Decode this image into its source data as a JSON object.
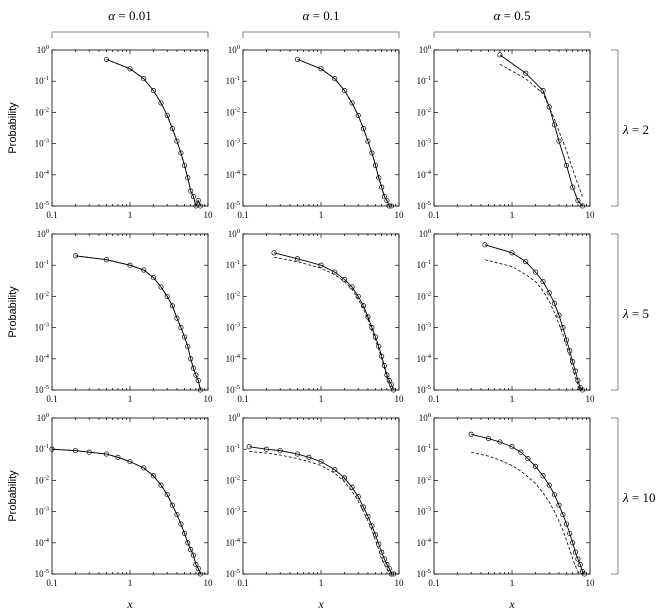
{
  "column_headers": [
    {
      "symbol": "α",
      "text": " = 0.01"
    },
    {
      "symbol": "α",
      "text": " = 0.1"
    },
    {
      "symbol": "α",
      "text": " = 0.5"
    }
  ],
  "row_headers": [
    {
      "symbol": "λ",
      "text": " = 2"
    },
    {
      "symbol": "λ",
      "text": " = 5"
    },
    {
      "symbol": "λ",
      "text": " = 10"
    }
  ],
  "ylabel": "Probability",
  "xlabel": "x",
  "x_tick_labels": [
    "0.1",
    "1",
    "10"
  ],
  "y_tick_base": "10",
  "y_tick_exponents": [
    "0",
    "-1",
    "-2",
    "-3",
    "-4",
    "-5"
  ],
  "chart_data": {
    "type": "line",
    "layout": "3x3 grid",
    "xscale": "log",
    "yscale": "log",
    "xlim": [
      0.1,
      10
    ],
    "ylim": [
      1e-05,
      1
    ],
    "grid": false,
    "series_styles": {
      "simulation": "solid line with open circles",
      "theory": "dashed line"
    },
    "panels": [
      {
        "alpha": 0.01,
        "lambda": 2,
        "sim": {
          "x": [
            0.5,
            1,
            1.5,
            2,
            2.5,
            3,
            3.5,
            4,
            4.5,
            5,
            5.5,
            6,
            6.5,
            7,
            7.5,
            8
          ],
          "y": [
            0.5,
            0.25,
            0.12,
            0.05,
            0.02,
            0.008,
            0.003,
            0.0012,
            0.0005,
            0.0002,
            8e-05,
            3e-05,
            2e-05,
            1e-05,
            1.5e-05,
            1e-05
          ]
        },
        "theory": {
          "x": [
            0.5,
            1,
            1.5,
            2,
            2.5,
            3,
            3.5,
            4,
            4.5,
            5,
            5.5,
            6,
            6.5,
            7,
            7.5,
            8
          ],
          "y": [
            0.5,
            0.25,
            0.12,
            0.05,
            0.02,
            0.008,
            0.003,
            0.0012,
            0.0005,
            0.0002,
            8e-05,
            3e-05,
            2e-05,
            1e-05,
            1.5e-05,
            1e-05
          ]
        }
      },
      {
        "alpha": 0.1,
        "lambda": 2,
        "sim": {
          "x": [
            0.5,
            1,
            1.5,
            2,
            2.5,
            3,
            3.5,
            4,
            4.5,
            5,
            5.5,
            6,
            6.5,
            7,
            7.5,
            8
          ],
          "y": [
            0.5,
            0.25,
            0.12,
            0.05,
            0.02,
            0.008,
            0.003,
            0.0012,
            0.0005,
            0.0002,
            8e-05,
            4e-05,
            2e-05,
            1.5e-05,
            1e-05,
            1e-05
          ]
        },
        "theory": {
          "x": [
            0.5,
            1,
            1.5,
            2,
            2.5,
            3,
            3.5,
            4,
            4.5,
            5,
            5.5,
            6,
            6.5,
            7,
            7.5,
            8
          ],
          "y": [
            0.5,
            0.25,
            0.12,
            0.05,
            0.02,
            0.008,
            0.003,
            0.0012,
            0.0005,
            0.0002,
            8e-05,
            4e-05,
            2e-05,
            1.5e-05,
            1e-05,
            1e-05
          ]
        }
      },
      {
        "alpha": 0.5,
        "lambda": 2,
        "sim": {
          "x": [
            0.7,
            1.5,
            2.5,
            3,
            3.5,
            4,
            5,
            6,
            7,
            8
          ],
          "y": [
            0.7,
            0.18,
            0.05,
            0.015,
            0.004,
            0.0012,
            0.0002,
            4e-05,
            1.5e-05,
            1e-05
          ]
        },
        "theory": {
          "x": [
            0.7,
            1.5,
            2.5,
            3,
            3.5,
            4,
            5,
            6,
            7,
            8
          ],
          "y": [
            0.35,
            0.12,
            0.04,
            0.015,
            0.006,
            0.0025,
            0.0006,
            0.00015,
            5e-05,
            2e-05
          ]
        }
      },
      {
        "alpha": 0.01,
        "lambda": 5,
        "sim": {
          "x": [
            0.2,
            0.5,
            1,
            1.5,
            2,
            2.5,
            3,
            3.5,
            4,
            4.5,
            5,
            5.5,
            6,
            6.5,
            7,
            7.5,
            8
          ],
          "y": [
            0.2,
            0.15,
            0.1,
            0.07,
            0.04,
            0.02,
            0.01,
            0.005,
            0.002,
            0.001,
            0.0005,
            0.00025,
            0.0001,
            5e-05,
            3e-05,
            2e-05,
            1e-05
          ]
        },
        "theory": {
          "x": [
            0.2,
            0.5,
            1,
            1.5,
            2,
            2.5,
            3,
            3.5,
            4,
            4.5,
            5,
            5.5,
            6,
            6.5,
            7,
            7.5,
            8
          ],
          "y": [
            0.2,
            0.15,
            0.1,
            0.07,
            0.04,
            0.02,
            0.01,
            0.005,
            0.002,
            0.001,
            0.0005,
            0.00025,
            0.0001,
            5e-05,
            3e-05,
            2e-05,
            1e-05
          ]
        }
      },
      {
        "alpha": 0.1,
        "lambda": 5,
        "sim": {
          "x": [
            0.25,
            0.5,
            1,
            1.5,
            2,
            2.5,
            3,
            3.5,
            4,
            4.5,
            5,
            5.5,
            6,
            6.5,
            7,
            7.5,
            8,
            8.5
          ],
          "y": [
            0.25,
            0.16,
            0.1,
            0.06,
            0.035,
            0.02,
            0.01,
            0.005,
            0.0022,
            0.001,
            0.0005,
            0.00025,
            0.00012,
            6e-05,
            3e-05,
            2e-05,
            1.5e-05,
            1e-05
          ]
        },
        "theory": {
          "x": [
            0.25,
            0.5,
            1,
            1.5,
            2,
            2.5,
            3,
            3.5,
            4,
            4.5,
            5,
            5.5,
            6,
            6.5,
            7,
            7.5,
            8,
            8.5
          ],
          "y": [
            0.18,
            0.13,
            0.08,
            0.05,
            0.03,
            0.017,
            0.008,
            0.004,
            0.0018,
            0.0008,
            0.0004,
            0.0002,
            0.0001,
            5e-05,
            2.5e-05,
            1.5e-05,
            1e-05,
            1e-05
          ]
        }
      },
      {
        "alpha": 0.5,
        "lambda": 5,
        "sim": {
          "x": [
            0.45,
            1,
            1.5,
            2,
            2.5,
            3,
            3.5,
            4,
            4.5,
            5,
            5.5,
            6,
            6.5,
            7,
            7.5,
            8
          ],
          "y": [
            0.45,
            0.25,
            0.13,
            0.06,
            0.03,
            0.013,
            0.006,
            0.0025,
            0.001,
            0.0004,
            0.00018,
            8e-05,
            4e-05,
            2e-05,
            1.2e-05,
            1e-05
          ]
        },
        "theory": {
          "x": [
            0.45,
            1,
            1.5,
            2,
            2.5,
            3,
            3.5,
            4,
            4.5,
            5,
            5.5,
            6,
            6.5,
            7,
            7.5,
            8
          ],
          "y": [
            0.15,
            0.09,
            0.05,
            0.03,
            0.015,
            0.007,
            0.003,
            0.0013,
            0.0006,
            0.00026,
            0.00012,
            5e-05,
            2.5e-05,
            1.5e-05,
            1e-05,
            1e-05
          ]
        }
      },
      {
        "alpha": 0.01,
        "lambda": 10,
        "sim": {
          "x": [
            0.1,
            0.2,
            0.3,
            0.5,
            0.7,
            1,
            1.5,
            2,
            2.5,
            3,
            3.5,
            4,
            4.5,
            5,
            5.5,
            6,
            6.5,
            7,
            7.5,
            8
          ],
          "y": [
            0.1,
            0.09,
            0.08,
            0.07,
            0.055,
            0.04,
            0.025,
            0.014,
            0.007,
            0.0035,
            0.0016,
            0.0008,
            0.0004,
            0.0002,
            0.0001,
            6e-05,
            4e-05,
            2e-05,
            1.5e-05,
            1e-05
          ]
        },
        "theory": {
          "x": [
            0.1,
            0.2,
            0.3,
            0.5,
            0.7,
            1,
            1.5,
            2,
            2.5,
            3,
            3.5,
            4,
            4.5,
            5,
            5.5,
            6,
            6.5,
            7,
            7.5,
            8
          ],
          "y": [
            0.1,
            0.09,
            0.08,
            0.07,
            0.055,
            0.04,
            0.025,
            0.014,
            0.007,
            0.0035,
            0.0016,
            0.0008,
            0.0004,
            0.0002,
            0.0001,
            6e-05,
            4e-05,
            2e-05,
            1.5e-05,
            1e-05
          ]
        }
      },
      {
        "alpha": 0.1,
        "lambda": 10,
        "sim": {
          "x": [
            0.12,
            0.2,
            0.3,
            0.5,
            0.7,
            1,
            1.5,
            2,
            2.5,
            3,
            3.5,
            4,
            4.5,
            5,
            5.5,
            6,
            6.5,
            7,
            7.5,
            8,
            8.5
          ],
          "y": [
            0.12,
            0.1,
            0.09,
            0.07,
            0.055,
            0.04,
            0.022,
            0.012,
            0.006,
            0.003,
            0.0014,
            0.0007,
            0.00035,
            0.00018,
            9e-05,
            5e-05,
            3e-05,
            2e-05,
            1.5e-05,
            1e-05,
            1e-05
          ]
        },
        "theory": {
          "x": [
            0.12,
            0.2,
            0.3,
            0.5,
            0.7,
            1,
            1.5,
            2,
            2.5,
            3,
            3.5,
            4,
            4.5,
            5,
            5.5,
            6,
            6.5,
            7,
            7.5,
            8,
            8.5
          ],
          "y": [
            0.085,
            0.075,
            0.065,
            0.05,
            0.04,
            0.03,
            0.017,
            0.009,
            0.0045,
            0.0022,
            0.001,
            0.0005,
            0.00025,
            0.00012,
            6e-05,
            3e-05,
            2e-05,
            1.5e-05,
            1e-05,
            1e-05,
            1e-05
          ]
        }
      },
      {
        "alpha": 0.5,
        "lambda": 10,
        "sim": {
          "x": [
            0.3,
            0.5,
            0.7,
            1,
            1.3,
            1.6,
            2,
            2.5,
            3,
            3.5,
            4,
            4.5,
            5,
            5.5,
            6,
            6.5,
            7,
            7.5,
            8,
            8.5
          ],
          "y": [
            0.3,
            0.22,
            0.17,
            0.12,
            0.08,
            0.05,
            0.028,
            0.014,
            0.007,
            0.0035,
            0.0016,
            0.0008,
            0.0004,
            0.0002,
            0.0001,
            5e-05,
            3e-05,
            2e-05,
            1.2e-05,
            1e-05
          ]
        },
        "theory": {
          "x": [
            0.3,
            0.5,
            0.7,
            1,
            1.3,
            1.6,
            2,
            2.5,
            3,
            3.5,
            4,
            4.5,
            5,
            5.5,
            6,
            6.5,
            7,
            7.5,
            8,
            8.5
          ],
          "y": [
            0.08,
            0.06,
            0.045,
            0.03,
            0.02,
            0.013,
            0.008,
            0.004,
            0.002,
            0.001,
            0.0005,
            0.00025,
            0.00012,
            6e-05,
            3e-05,
            1.8e-05,
            1.2e-05,
            1e-05,
            1e-05,
            1e-05
          ]
        }
      }
    ]
  }
}
